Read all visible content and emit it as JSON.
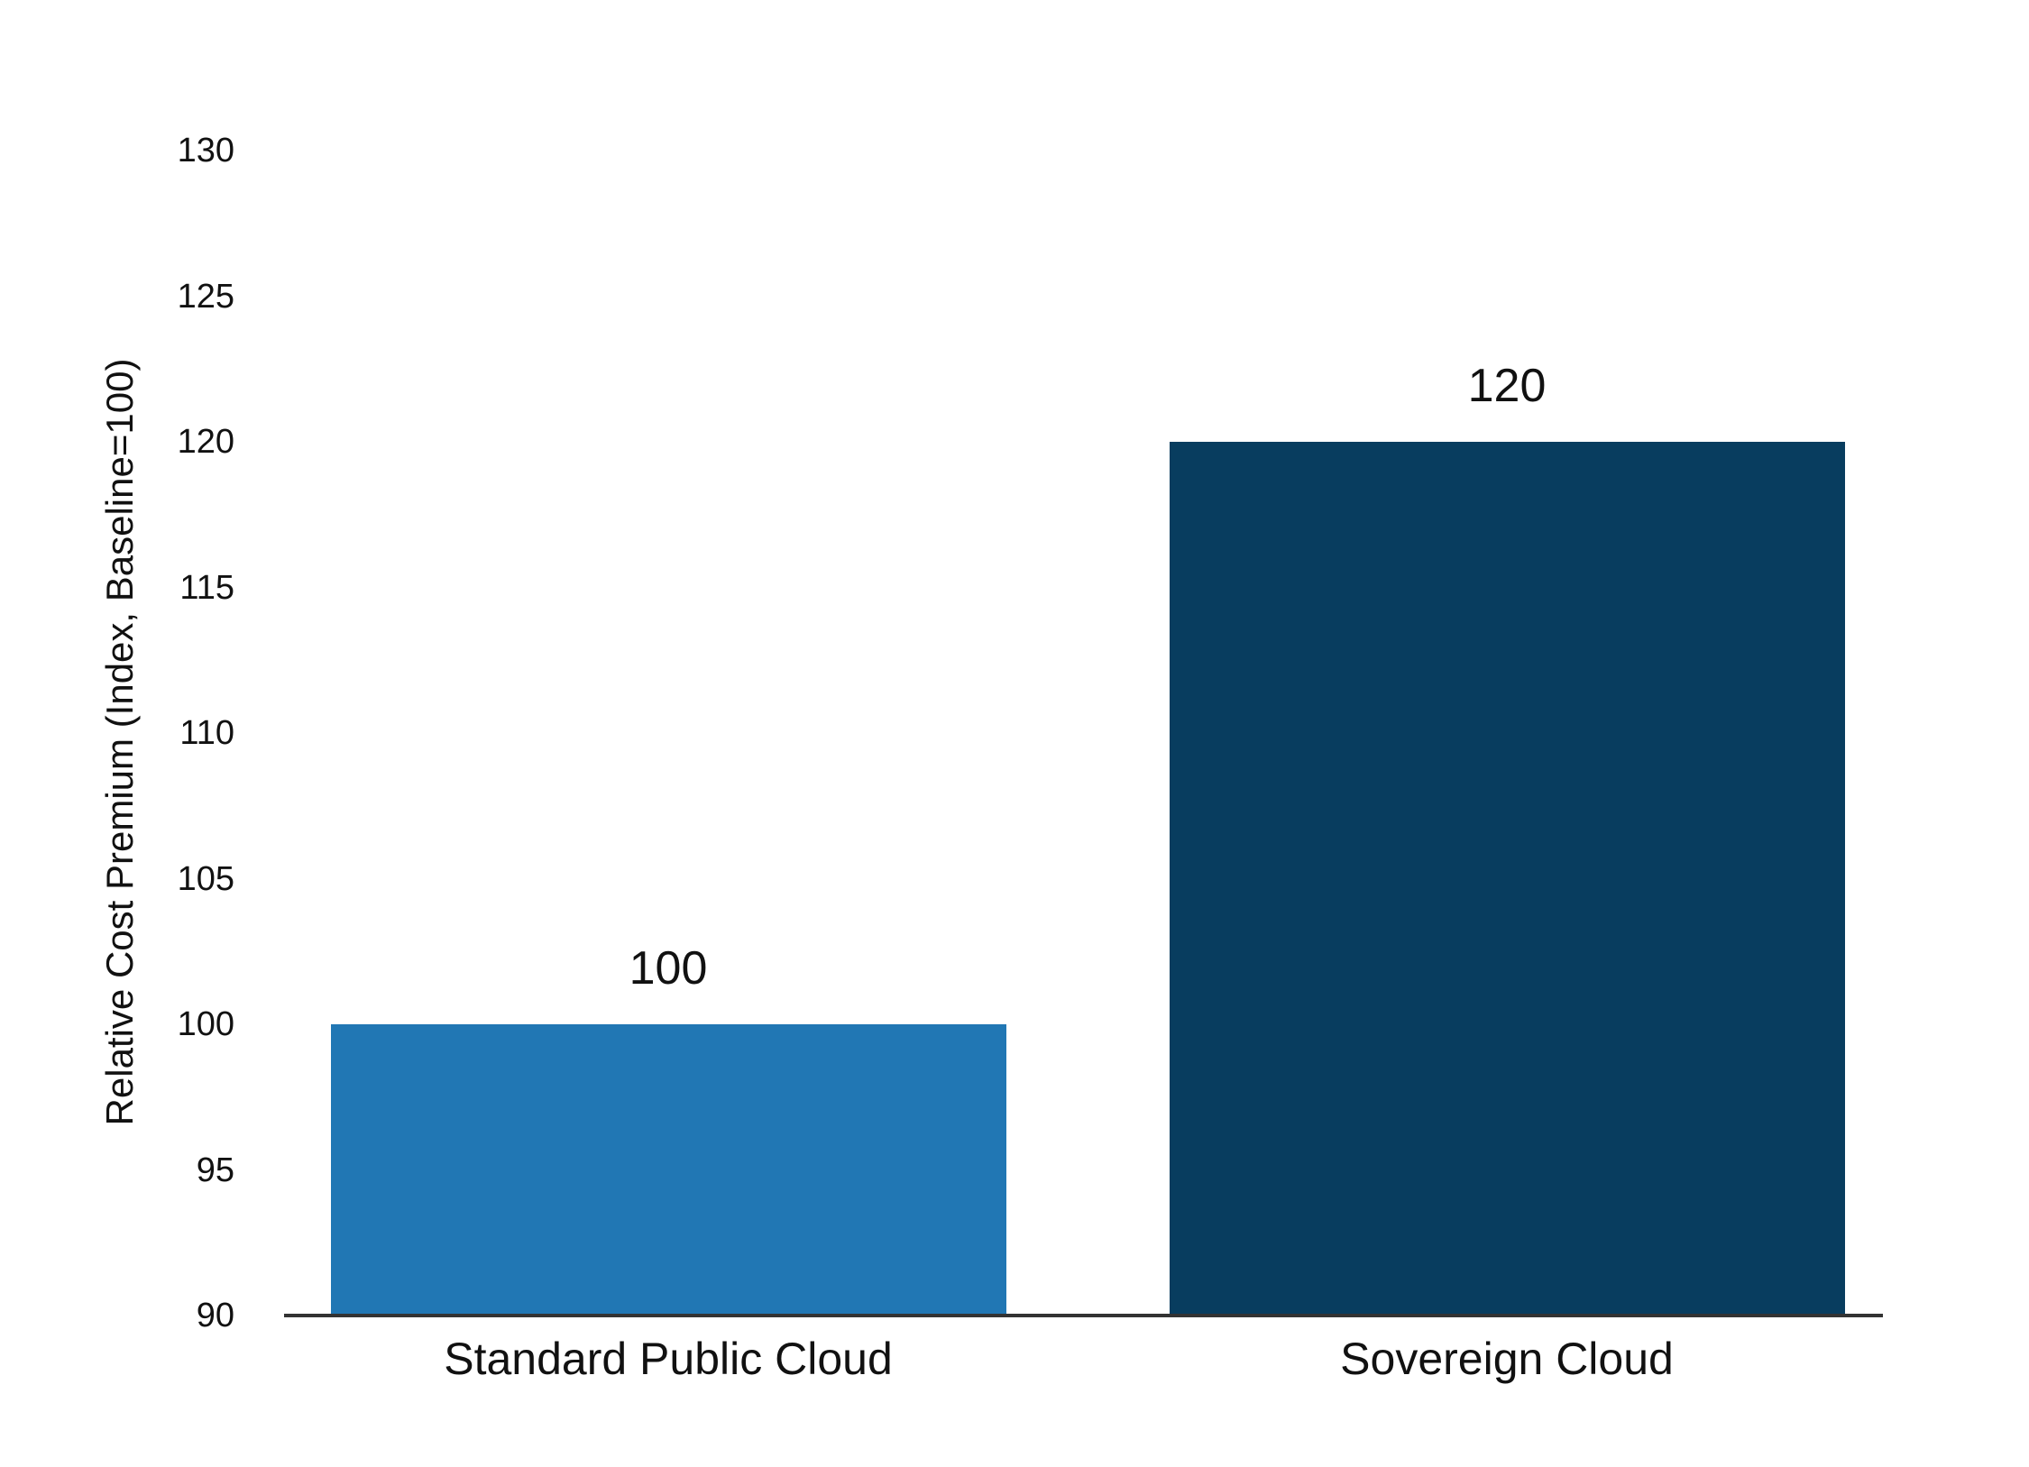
{
  "chart_data": {
    "type": "bar",
    "categories": [
      "Standard Public Cloud",
      "Sovereign Cloud"
    ],
    "values": [
      100,
      120
    ],
    "value_labels": [
      "100",
      "120"
    ],
    "bar_colors": [
      "#2177B4",
      "#083D5F"
    ],
    "title": "",
    "xlabel": "",
    "ylabel": "Relative Cost Premium (Index, Baseline=100)",
    "ylim": [
      90,
      130
    ],
    "yticks": [
      90,
      95,
      100,
      105,
      110,
      115,
      120,
      125,
      130
    ],
    "grid": false,
    "legend": false,
    "axis_color": "#333333",
    "text_color": "#111111",
    "background_color": "#ffffff"
  }
}
